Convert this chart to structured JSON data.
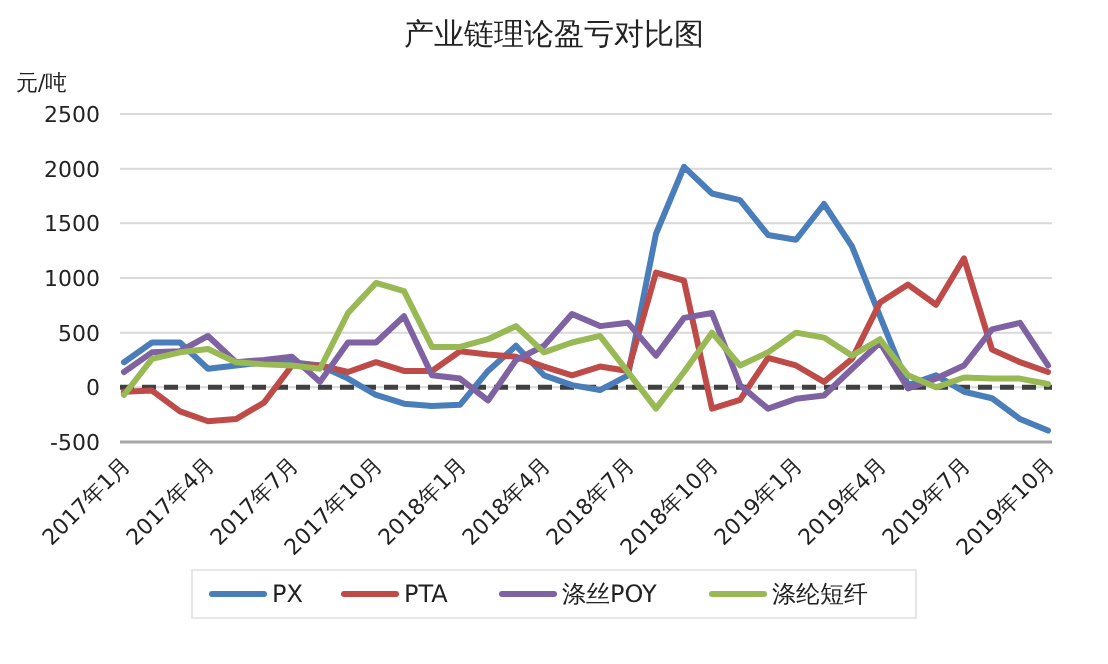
{
  "chart_data": {
    "type": "line",
    "title": "产业链理论盈亏对比图",
    "ylabel": "元/吨",
    "categories": [
      "2017年1月",
      null,
      null,
      "2017年4月",
      null,
      null,
      "2017年7月",
      null,
      null,
      "2017年10月",
      null,
      null,
      "2018年1月",
      null,
      null,
      "2018年4月",
      null,
      null,
      "2018年7月",
      null,
      null,
      "2018年10月",
      null,
      null,
      "2019年1月",
      null,
      null,
      "2019年4月",
      null,
      null,
      "2019年7月",
      null,
      null,
      "2019年10月"
    ],
    "series": [
      {
        "name": "PX",
        "color": "#4a7ebb",
        "values": [
          230,
          410,
          410,
          170,
          200,
          230,
          230,
          200,
          80,
          -70,
          -150,
          -170,
          -160,
          150,
          380,
          110,
          20,
          -25,
          110,
          1405,
          2017,
          1773,
          1713,
          1394,
          1350,
          1677,
          1290,
          650,
          20,
          110,
          -40,
          -100,
          -290,
          -395
        ]
      },
      {
        "name": "PTA",
        "color": "#be4b48",
        "values": [
          -40,
          -30,
          -220,
          -310,
          -290,
          -140,
          200,
          200,
          140,
          230,
          150,
          150,
          330,
          300,
          280,
          190,
          110,
          190,
          150,
          1050,
          975,
          -195,
          -115,
          270,
          200,
          50,
          260,
          775,
          940,
          755,
          1180,
          345,
          230,
          140
        ]
      },
      {
        "name": "涤丝POY",
        "color": "#7e62a1",
        "values": [
          140,
          320,
          330,
          470,
          230,
          250,
          280,
          50,
          410,
          410,
          650,
          110,
          80,
          -120,
          250,
          380,
          670,
          560,
          590,
          290,
          635,
          680,
          20,
          -195,
          -105,
          -75,
          170,
          410,
          -10,
          80,
          200,
          530,
          590,
          200
        ]
      },
      {
        "name": "涤纶短纤",
        "color": "#98b954",
        "values": [
          -70,
          260,
          320,
          350,
          230,
          210,
          200,
          170,
          680,
          955,
          880,
          370,
          370,
          440,
          560,
          320,
          410,
          470,
          140,
          -195,
          140,
          500,
          200,
          320,
          500,
          455,
          290,
          440,
          110,
          0,
          90,
          80,
          80,
          30
        ]
      }
    ],
    "ylim": [
      -500,
      2500
    ],
    "yticks": [
      -500,
      0,
      500,
      1000,
      1500,
      2000,
      2500
    ],
    "grid": "y",
    "legend": "bottom",
    "marker": "none",
    "line_style": "solid",
    "ref_lines": [
      {
        "axis": "y",
        "value": 0,
        "color": "#404040",
        "line_style": "dashed"
      }
    ]
  }
}
